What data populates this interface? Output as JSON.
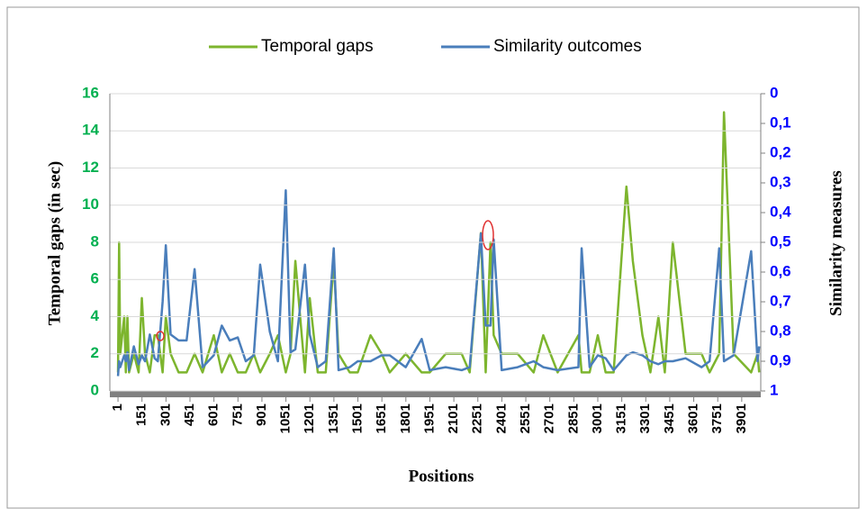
{
  "chart_data": {
    "type": "line",
    "x_label": "Positions",
    "y_label": "Temporal gaps (in sec)",
    "y2_label": "Similarity  measures",
    "x": [
      1,
      8,
      15,
      40,
      50,
      60,
      70,
      100,
      130,
      150,
      170,
      200,
      230,
      250,
      280,
      300,
      330,
      380,
      430,
      480,
      530,
      600,
      650,
      700,
      750,
      800,
      850,
      890,
      950,
      1001,
      1050,
      1080,
      1110,
      1170,
      1200,
      1250,
      1300,
      1350,
      1380,
      1450,
      1500,
      1580,
      1650,
      1700,
      1800,
      1900,
      1950,
      2050,
      2150,
      2200,
      2270,
      2300,
      2330,
      2350,
      2400,
      2500,
      2600,
      2660,
      2750,
      2880,
      2900,
      2950,
      3001,
      3050,
      3100,
      3180,
      3220,
      3280,
      3330,
      3380,
      3420,
      3470,
      3550,
      3650,
      3700,
      3760,
      3790,
      3850,
      3960,
      4000,
      4010
    ],
    "series": [
      {
        "name": "Temporal gaps",
        "color": "#7db52e",
        "values": [
          1,
          8,
          2,
          4,
          1,
          4,
          1,
          2,
          1,
          5,
          2,
          1,
          3,
          3,
          1,
          4,
          2,
          1,
          1,
          2,
          1,
          3,
          1,
          2,
          1,
          1,
          2,
          1,
          2,
          3,
          1,
          2,
          7,
          1,
          5,
          1,
          1,
          7,
          2,
          1,
          1,
          3,
          2,
          1,
          2,
          1,
          1,
          2,
          2,
          1,
          8.5,
          1,
          8,
          3,
          2,
          2,
          1,
          3,
          1,
          3,
          1,
          1,
          3,
          1,
          1,
          11,
          7,
          3,
          1,
          4,
          1,
          8,
          2,
          2,
          1,
          2,
          15,
          2,
          1,
          2,
          1
        ]
      },
      {
        "name": "Similarity outcomes",
        "color": "#4a7ebb",
        "axis": "y2",
        "values": [
          0.95,
          0.9,
          0.92,
          0.88,
          0.9,
          0.87,
          0.93,
          0.85,
          0.91,
          0.88,
          0.9,
          0.81,
          0.89,
          0.9,
          0.7,
          0.51,
          0.81,
          0.83,
          0.83,
          0.59,
          0.92,
          0.88,
          0.78,
          0.83,
          0.82,
          0.9,
          0.88,
          0.575,
          0.8,
          0.9,
          0.325,
          0.87,
          0.86,
          0.575,
          0.81,
          0.92,
          0.9,
          0.52,
          0.93,
          0.92,
          0.9,
          0.9,
          0.88,
          0.88,
          0.92,
          0.825,
          0.93,
          0.92,
          0.93,
          0.92,
          0.47,
          0.78,
          0.78,
          0.49,
          0.93,
          0.92,
          0.9,
          0.92,
          0.93,
          0.92,
          0.52,
          0.92,
          0.88,
          0.89,
          0.93,
          0.88,
          0.87,
          0.88,
          0.9,
          0.91,
          0.9,
          0.9,
          0.89,
          0.92,
          0.9,
          0.52,
          0.9,
          0.88,
          0.53,
          0.9,
          0.85
        ]
      }
    ],
    "xlim": [
      -50,
      4020
    ],
    "xticks": [
      1,
      151,
      301,
      451,
      601,
      751,
      901,
      1051,
      1201,
      1351,
      1501,
      1651,
      1801,
      1951,
      2101,
      2251,
      2401,
      2551,
      2701,
      2851,
      3001,
      3151,
      3301,
      3451,
      3601,
      3751,
      3901
    ],
    "ylim": [
      0,
      16
    ],
    "yticks": [
      0,
      2,
      4,
      6,
      8,
      10,
      12,
      14,
      16
    ],
    "y2lim": [
      1,
      0
    ],
    "y2ticks": [
      {
        "value": 0,
        "label": "0"
      },
      {
        "value": 0.1,
        "label": "0,1"
      },
      {
        "value": 0.2,
        "label": "0,2"
      },
      {
        "value": 0.3,
        "label": "0,3"
      },
      {
        "value": 0.4,
        "label": "0,4"
      },
      {
        "value": 0.5,
        "label": "0,5"
      },
      {
        "value": 0.6,
        "label": "0,6"
      },
      {
        "value": 0.7,
        "label": "0,7"
      },
      {
        "value": 0.8,
        "label": "0,8"
      },
      {
        "value": 0.9,
        "label": "0,9"
      },
      {
        "value": 1,
        "label": "1"
      }
    ],
    "ytick_color": "#00b050",
    "y2tick_color": "#0000ff",
    "legend": "top"
  }
}
